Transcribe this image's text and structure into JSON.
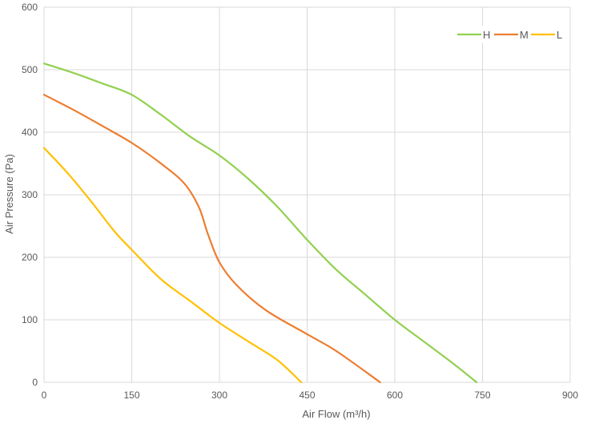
{
  "chart_data": {
    "type": "line",
    "title": "",
    "xlabel": "Air Flow  (m³/h)",
    "ylabel": "Air Pressure  (Pa)",
    "xlim": [
      0,
      900
    ],
    "ylim": [
      0,
      600
    ],
    "xticks": [
      0,
      150,
      300,
      450,
      600,
      750,
      900
    ],
    "yticks": [
      0,
      100,
      200,
      300,
      400,
      500,
      600
    ],
    "grid": true,
    "legend_position": "top-right",
    "series": [
      {
        "name": "H",
        "color": "#92d050",
        "points": [
          [
            0,
            510
          ],
          [
            50,
            495
          ],
          [
            100,
            478
          ],
          [
            150,
            460
          ],
          [
            200,
            428
          ],
          [
            250,
            393
          ],
          [
            300,
            363
          ],
          [
            350,
            325
          ],
          [
            400,
            280
          ],
          [
            450,
            228
          ],
          [
            500,
            180
          ],
          [
            550,
            140
          ],
          [
            600,
            100
          ],
          [
            650,
            65
          ],
          [
            700,
            30
          ],
          [
            740,
            0
          ]
        ]
      },
      {
        "name": "M",
        "color": "#ed7d31",
        "points": [
          [
            0,
            460
          ],
          [
            50,
            436
          ],
          [
            100,
            410
          ],
          [
            150,
            383
          ],
          [
            200,
            350
          ],
          [
            240,
            318
          ],
          [
            265,
            280
          ],
          [
            280,
            238
          ],
          [
            300,
            192
          ],
          [
            330,
            155
          ],
          [
            380,
            115
          ],
          [
            450,
            77
          ],
          [
            500,
            50
          ],
          [
            575,
            0
          ]
        ]
      },
      {
        "name": "L",
        "color": "#ffc000",
        "points": [
          [
            0,
            375
          ],
          [
            40,
            335
          ],
          [
            80,
            290
          ],
          [
            120,
            242
          ],
          [
            150,
            212
          ],
          [
            200,
            165
          ],
          [
            250,
            130
          ],
          [
            300,
            95
          ],
          [
            350,
            65
          ],
          [
            400,
            35
          ],
          [
            440,
            0
          ]
        ]
      }
    ]
  }
}
